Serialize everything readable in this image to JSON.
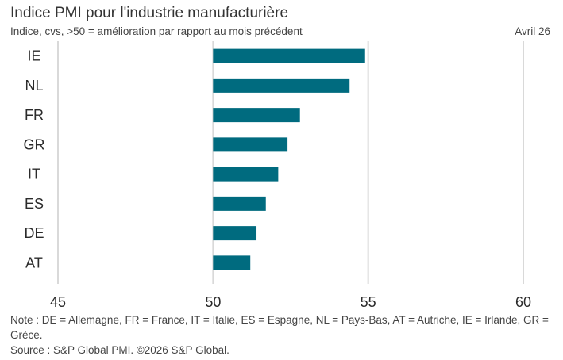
{
  "header": {
    "title": "Indice PMI pour l'industrie manufacturière",
    "subtitle": "Indice, cvs, >50 = amélioration par rapport au mois précédent",
    "date": "Avril 26"
  },
  "footer": {
    "note": "Note : DE = Allemagne, FR = France, IT = Italie, ES = Espagne, NL = Pays-Bas, AT = Autriche, IE = Irlande, GR = Grèce.",
    "source": "Source : S&P Global PMI. ©2026 S&P Global."
  },
  "colors": {
    "bar": "#006b7f",
    "grid": "#d9d9d9",
    "text": "#2b2b2b"
  },
  "chart_data": {
    "type": "bar",
    "orientation": "horizontal",
    "title": "Indice PMI pour l'industrie manufacturière",
    "subtitle": "Indice, cvs, >50 = amélioration par rapport au mois précédent",
    "categories": [
      "IE",
      "NL",
      "FR",
      "GR",
      "IT",
      "ES",
      "DE",
      "AT"
    ],
    "values": [
      54.9,
      54.4,
      52.8,
      52.4,
      52.1,
      51.7,
      51.4,
      51.2
    ],
    "baseline": 50,
    "xlim": [
      45,
      60
    ],
    "xticks": [
      45,
      50,
      55,
      60
    ],
    "grid": "vertical"
  }
}
